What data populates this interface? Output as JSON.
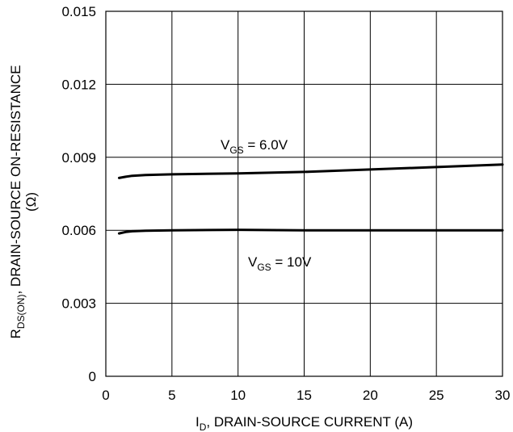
{
  "chart_data": {
    "type": "line",
    "x_ticks": [
      "0",
      "5",
      "10",
      "15",
      "20",
      "25",
      "30"
    ],
    "y_ticks": [
      "0",
      "0.003",
      "0.006",
      "0.009",
      "0.012",
      "0.015"
    ],
    "xlim": [
      0,
      30
    ],
    "ylim": [
      0,
      0.015
    ],
    "grid": true,
    "xlabel": {
      "main": "I",
      "sub": "D",
      "rest": ", DRAIN-SOURCE CURRENT (A)"
    },
    "ylabel": {
      "line1_main": "R",
      "line1_sub": "DS(ON)",
      "line1_rest": ", DRAIN-SOURCE ON-RESISTANCE",
      "line2": "(Ω)"
    },
    "series": [
      {
        "label_main": "V",
        "label_sub": "GS",
        "label_rest": " = 6.0V",
        "color": "#000000",
        "points": [
          [
            1,
            0.00815
          ],
          [
            1.5,
            0.0082
          ],
          [
            2,
            0.00824
          ],
          [
            3,
            0.00827
          ],
          [
            5,
            0.0083
          ],
          [
            10,
            0.00834
          ],
          [
            15,
            0.0084
          ],
          [
            20,
            0.0085
          ],
          [
            25,
            0.0086
          ],
          [
            30,
            0.0087
          ]
        ]
      },
      {
        "label_main": "V",
        "label_sub": "GS",
        "label_rest": " = 10V",
        "color": "#000000",
        "points": [
          [
            1,
            0.00587
          ],
          [
            1.5,
            0.00593
          ],
          [
            2,
            0.00596
          ],
          [
            3,
            0.00598
          ],
          [
            5,
            0.006
          ],
          [
            10,
            0.00602
          ],
          [
            15,
            0.006
          ],
          [
            20,
            0.006
          ],
          [
            25,
            0.006
          ],
          [
            30,
            0.006
          ]
        ]
      }
    ]
  }
}
